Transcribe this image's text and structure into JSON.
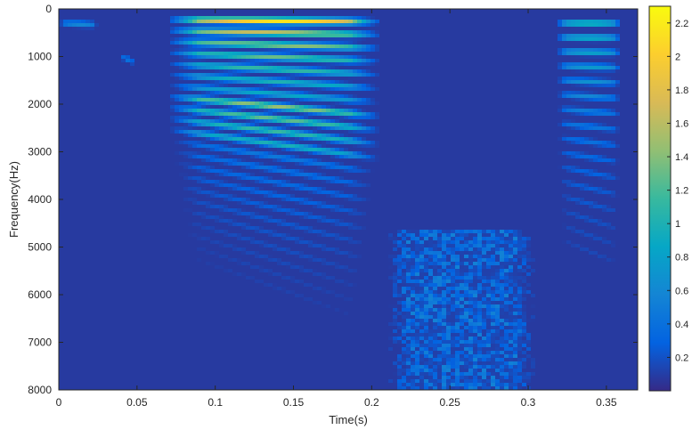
{
  "chart_data": {
    "type": "heatmap",
    "subtype": "spectrogram",
    "xlabel": "Time(s)",
    "ylabel": "Frequency(Hz)",
    "xlim": [
      0,
      0.37
    ],
    "ylim": [
      0,
      8000
    ],
    "y_reversed": true,
    "x_ticks": [
      0,
      0.05,
      0.1,
      0.15,
      0.2,
      0.25,
      0.3,
      0.35
    ],
    "x_tick_labels": [
      "0",
      "0.05",
      "0.1",
      "0.15",
      "0.2",
      "0.25",
      "0.3",
      "0.35"
    ],
    "y_ticks": [
      0,
      1000,
      2000,
      3000,
      4000,
      5000,
      6000,
      7000,
      8000
    ],
    "y_tick_labels": [
      "0",
      "1000",
      "2000",
      "3000",
      "4000",
      "5000",
      "6000",
      "7000",
      "8000"
    ],
    "colormap": "parula",
    "colorbar": {
      "range": [
        0,
        2.3
      ],
      "ticks": [
        0.2,
        0.4,
        0.6,
        0.8,
        1,
        1.2,
        1.4,
        1.6,
        1.8,
        2,
        2.2
      ],
      "tick_labels": [
        "0.2",
        "0.4",
        "0.6",
        "0.8",
        "1",
        "1.2",
        "1.4",
        "1.6",
        "1.8",
        "2",
        "2.2"
      ],
      "colors": [
        "#352a87",
        "#0363e1",
        "#1485d4",
        "#06a7c6",
        "#38b99e",
        "#92bf73",
        "#d9ba56",
        "#fcce2e",
        "#f9fb0e"
      ]
    },
    "background_value": 0.08,
    "segments": [
      {
        "name": "segment-1",
        "t_start": 0.0,
        "t_end": 0.025,
        "kind": "harmonic",
        "f0_start": 300,
        "f0_end": 300,
        "harmonics": 1,
        "peak": 0.7
      },
      {
        "name": "segment-2",
        "t_start": 0.04,
        "t_end": 0.048,
        "kind": "harmonic",
        "f0_start": 1000,
        "f0_end": 1000,
        "harmonics": 1,
        "peak": 0.5
      },
      {
        "name": "segment-3",
        "t_start": 0.07,
        "t_end": 0.205,
        "kind": "harmonic",
        "f0_start": 230,
        "f0_end": 270,
        "harmonics": 22,
        "peak": 2.2
      },
      {
        "name": "segment-4",
        "t_start": 0.21,
        "t_end": 0.305,
        "kind": "noise",
        "f_low": 4600,
        "f_high": 8000,
        "peak": 0.55
      },
      {
        "name": "segment-5",
        "t_start": 0.318,
        "t_end": 0.36,
        "kind": "harmonic",
        "f0_start": 300,
        "f0_end": 300,
        "harmonics": 16,
        "peak": 1.3
      }
    ]
  }
}
